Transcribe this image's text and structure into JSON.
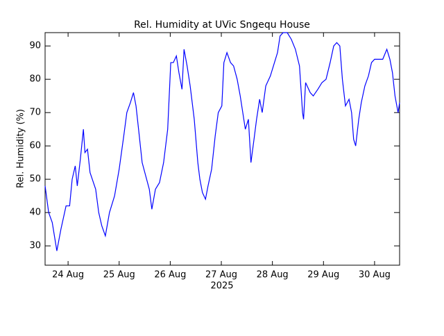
{
  "chart_data": {
    "type": "line",
    "title": "Rel. Humidity at UVic Sngequ House",
    "y_label": "Rel. Humidity (%)",
    "x_label": "2025",
    "xlim": [
      24.05,
      30.99
    ],
    "ylim": [
      24.2,
      94
    ],
    "xticks": [
      {
        "value": 24.5,
        "label": "24 Aug"
      },
      {
        "value": 25.5,
        "label": "25 Aug"
      },
      {
        "value": 26.5,
        "label": "26 Aug"
      },
      {
        "value": 27.5,
        "label": "27 Aug"
      },
      {
        "value": 28.5,
        "label": "28 Aug"
      },
      {
        "value": 29.5,
        "label": "29 Aug"
      },
      {
        "value": 30.5,
        "label": "30 Aug"
      }
    ],
    "yticks": [
      30,
      40,
      50,
      60,
      70,
      80,
      90
    ],
    "x": [
      24.05,
      24.12,
      24.19,
      24.28,
      24.36,
      24.46,
      24.53,
      24.58,
      24.64,
      24.68,
      24.74,
      24.8,
      24.83,
      24.88,
      24.93,
      25.04,
      25.1,
      25.16,
      25.23,
      25.31,
      25.41,
      25.5,
      25.59,
      25.65,
      25.72,
      25.78,
      25.83,
      25.88,
      25.95,
      26.02,
      26.09,
      26.14,
      26.21,
      26.29,
      26.37,
      26.45,
      26.51,
      26.56,
      26.62,
      26.67,
      26.73,
      26.77,
      26.83,
      26.89,
      26.97,
      27.04,
      27.08,
      27.13,
      27.19,
      27.24,
      27.31,
      27.38,
      27.44,
      27.51,
      27.55,
      27.61,
      27.68,
      27.74,
      27.81,
      27.87,
      27.92,
      27.97,
      28.03,
      28.08,
      28.14,
      28.19,
      28.25,
      28.3,
      28.37,
      28.46,
      28.54,
      28.6,
      28.65,
      28.71,
      28.79,
      28.87,
      28.95,
      29.03,
      29.09,
      29.11,
      29.15,
      29.24,
      29.3,
      29.39,
      29.47,
      29.55,
      29.63,
      29.7,
      29.76,
      29.82,
      29.87,
      29.93,
      30.0,
      30.05,
      30.09,
      30.13,
      30.19,
      30.24,
      30.31,
      30.38,
      30.44,
      30.5,
      30.58,
      30.66,
      30.74,
      30.8,
      30.85,
      30.9,
      30.96,
      30.99
    ],
    "series": [
      {
        "name": "Rel. Humidity",
        "color": "#0000ff",
        "values": [
          48,
          40,
          37,
          28.5,
          35,
          42,
          42,
          50,
          54,
          48,
          56,
          65,
          58,
          59,
          52,
          47,
          40,
          36,
          33,
          40,
          45,
          53,
          63,
          70,
          73,
          76,
          72,
          65,
          55,
          51,
          47,
          41,
          47,
          49,
          55,
          65,
          85,
          85,
          87,
          82,
          77,
          89,
          84,
          78,
          68,
          55,
          50,
          46,
          44,
          48,
          53,
          63,
          70,
          72,
          85,
          88,
          85,
          84,
          80,
          75,
          70,
          65,
          68,
          55,
          62,
          68,
          74,
          70,
          78,
          81,
          85,
          88,
          93,
          94,
          94,
          92,
          89,
          84,
          70,
          68,
          79,
          76,
          75,
          77,
          79,
          80,
          85,
          90,
          91,
          90,
          80,
          72,
          74,
          70,
          62,
          60,
          68,
          73,
          78,
          81,
          85,
          86,
          86,
          86,
          89,
          86,
          82,
          75,
          70,
          73
        ]
      }
    ]
  }
}
